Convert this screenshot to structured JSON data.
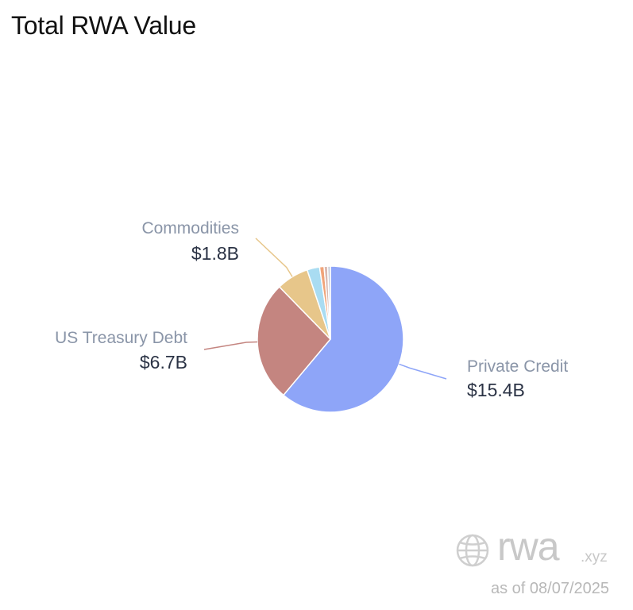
{
  "chart_data": {
    "type": "pie",
    "title": "Total RWA Value",
    "slices": [
      {
        "name": "Private Credit",
        "value": 15.4,
        "value_label": "$15.4B",
        "color": "#8ea5f8",
        "labeled": true
      },
      {
        "name": "US Treasury Debt",
        "value": 6.7,
        "value_label": "$6.7B",
        "color": "#c48580",
        "labeled": true
      },
      {
        "name": "Commodities",
        "value": 1.8,
        "value_label": "$1.8B",
        "color": "#e7c68a",
        "labeled": true
      },
      {
        "name": "",
        "value": 0.7,
        "color": "#a9dcf2",
        "labeled": false
      },
      {
        "name": "",
        "value": 0.25,
        "color": "#f0a47a",
        "labeled": false
      },
      {
        "name": "",
        "value": 0.2,
        "color": "#d9b8b0",
        "labeled": false
      },
      {
        "name": "",
        "value": 0.15,
        "color": "#c6ccd6",
        "labeled": false
      }
    ]
  },
  "watermark": {
    "brand": "rwa",
    "tld": ".xyz",
    "as_of": "as of 08/07/2025",
    "icon": "globe-icon",
    "color": "#c8c8c8"
  }
}
